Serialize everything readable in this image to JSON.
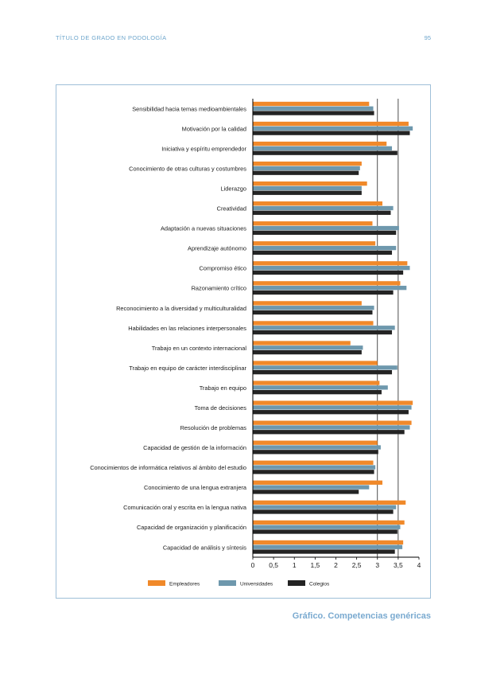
{
  "header": {
    "running_title": "TÍTULO DE GRADO EN PODOLOGÍA",
    "page_number": "95"
  },
  "colors": {
    "empleadores": "#f0892a",
    "universidades": "#6e98ad",
    "colegios": "#232323",
    "frame": "#9fbfd8",
    "accent_text": "#6ea6cc"
  },
  "chart_data": {
    "type": "bar",
    "orientation": "horizontal",
    "title": "Gráfico. Competencias genéricas",
    "xlim": [
      0,
      4
    ],
    "xticks": [
      "0",
      "0,5",
      "1",
      "1,5",
      "2",
      "2,5",
      "3",
      "3,5",
      "4"
    ],
    "xtick_values": [
      0,
      0.5,
      1,
      1.5,
      2,
      2.5,
      3,
      3.5,
      4
    ],
    "grid_lines": [
      3,
      3.5
    ],
    "legend_position": "bottom",
    "categories": [
      "Sensibilidad hacia temas medioambientales",
      "Motivación por la calidad",
      "Iniciativa y espíritu emprendedor",
      "Conocimiento de otras culturas y costumbres",
      "Liderazgo",
      "Creatividad",
      "Adaptación a nuevas situaciones",
      "Aprendizaje autónomo",
      "Compromiso ético",
      "Razonamiento crítico",
      "Reconocimiento a la diversidad y multiculturalidad",
      "Habilidades en las relaciones interpersonales",
      "Trabajo en un contexto internacional",
      "Trabajo en equipo de carácter interdisciplinar",
      "Trabajo en equipo",
      "Toma de decisiones",
      "Resolución de problemas",
      "Capacidad de gestión de la información",
      "Conocimientos de informática relativos al ámbito del estudio",
      "Conocimiento de una lengua extranjera",
      "Comunicación oral y escrita en la lengua nativa",
      "Capacidad de organización y planificación",
      "Capacidad de análisis y síntesis"
    ],
    "series": [
      {
        "name": "Empleadores",
        "color": "#f0892a",
        "values": [
          2.8,
          3.75,
          3.22,
          2.62,
          2.75,
          3.12,
          2.88,
          2.95,
          3.72,
          3.55,
          2.62,
          2.9,
          2.35,
          3.0,
          3.05,
          3.85,
          3.82,
          3.0,
          2.9,
          3.12,
          3.68,
          3.65,
          3.62
        ]
      },
      {
        "name": "Universidades",
        "color": "#6e98ad",
        "values": [
          2.9,
          3.85,
          3.35,
          2.58,
          2.62,
          3.38,
          3.52,
          3.45,
          3.78,
          3.7,
          2.92,
          3.42,
          2.65,
          3.48,
          3.25,
          3.82,
          3.78,
          3.08,
          2.95,
          2.8,
          3.45,
          3.55,
          3.6
        ]
      },
      {
        "name": "Colegios",
        "color": "#232323",
        "values": [
          2.92,
          3.78,
          3.48,
          2.55,
          2.62,
          3.32,
          3.45,
          3.35,
          3.62,
          3.38,
          2.88,
          3.35,
          2.62,
          3.35,
          3.1,
          3.75,
          3.65,
          3.02,
          2.92,
          2.55,
          3.38,
          3.48,
          3.42
        ]
      }
    ]
  }
}
